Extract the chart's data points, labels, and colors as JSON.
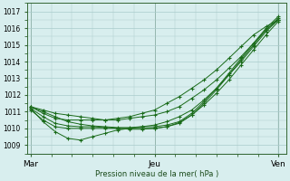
{
  "title": "",
  "xlabel": "Pression niveau de la mer( hPa )",
  "bg_color": "#d8eeee",
  "grid_color": "#aacccc",
  "line_color": "#1a6b1a",
  "ylim": [
    1008.5,
    1017.5
  ],
  "yticks": [
    1009,
    1010,
    1011,
    1012,
    1013,
    1014,
    1015,
    1016,
    1017
  ],
  "xtick_labels": [
    "Mar",
    "Jeu",
    "Ven"
  ],
  "xtick_positions": [
    0.0,
    0.417,
    0.833
  ],
  "series": [
    {
      "x": [
        0.0,
        0.042,
        0.083,
        0.125,
        0.167,
        0.208,
        0.25,
        0.292,
        0.333,
        0.375,
        0.417,
        0.458,
        0.5,
        0.542,
        0.583,
        0.625,
        0.667,
        0.708,
        0.75,
        0.792,
        0.833
      ],
      "y": [
        1011.3,
        1011.1,
        1010.9,
        1010.8,
        1010.7,
        1010.6,
        1010.5,
        1010.5,
        1010.6,
        1010.7,
        1010.8,
        1011.0,
        1011.3,
        1011.8,
        1012.3,
        1012.9,
        1013.6,
        1014.3,
        1015.1,
        1015.9,
        1016.6
      ]
    },
    {
      "x": [
        0.0,
        0.042,
        0.083,
        0.125,
        0.167,
        0.208,
        0.25,
        0.292,
        0.333,
        0.375,
        0.417,
        0.458,
        0.5,
        0.542,
        0.583,
        0.625,
        0.667,
        0.708,
        0.75,
        0.792,
        0.833
      ],
      "y": [
        1011.1,
        1010.5,
        1010.1,
        1010.0,
        1010.0,
        1010.0,
        1010.0,
        1010.0,
        1010.0,
        1010.0,
        1010.0,
        1010.1,
        1010.3,
        1010.8,
        1011.5,
        1012.3,
        1013.2,
        1014.1,
        1015.0,
        1015.9,
        1016.5
      ]
    },
    {
      "x": [
        0.0,
        0.042,
        0.083,
        0.125,
        0.167,
        0.208,
        0.25,
        0.292,
        0.333,
        0.375,
        0.417,
        0.458,
        0.5,
        0.542,
        0.583,
        0.625,
        0.667,
        0.708,
        0.75,
        0.792,
        0.833
      ],
      "y": [
        1011.2,
        1010.4,
        1009.8,
        1009.4,
        1009.3,
        1009.5,
        1009.7,
        1009.9,
        1010.0,
        1010.1,
        1010.1,
        1010.2,
        1010.4,
        1010.9,
        1011.6,
        1012.4,
        1013.3,
        1014.2,
        1015.1,
        1016.0,
        1016.7
      ]
    },
    {
      "x": [
        0.0,
        0.042,
        0.083,
        0.125,
        0.167,
        0.208,
        0.25,
        0.292,
        0.333,
        0.375,
        0.417,
        0.458,
        0.5,
        0.542,
        0.583,
        0.625,
        0.667,
        0.708,
        0.75,
        0.792,
        0.833
      ],
      "y": [
        1011.3,
        1010.9,
        1010.6,
        1010.5,
        1010.5,
        1010.5,
        1010.5,
        1010.6,
        1010.7,
        1010.9,
        1011.1,
        1011.5,
        1011.9,
        1012.4,
        1012.9,
        1013.5,
        1014.2,
        1014.9,
        1015.6,
        1016.1,
        1016.5
      ]
    },
    {
      "x": [
        0.0,
        0.042,
        0.083,
        0.125,
        0.167,
        0.208,
        0.25,
        0.292,
        0.333,
        0.375,
        0.417,
        0.458,
        0.5,
        0.542,
        0.583,
        0.625,
        0.667,
        0.708,
        0.75,
        0.792,
        0.833
      ],
      "y": [
        1011.2,
        1010.7,
        1010.3,
        1010.15,
        1010.1,
        1010.1,
        1010.05,
        1010.0,
        1009.95,
        1009.95,
        1010.0,
        1010.1,
        1010.35,
        1010.8,
        1011.4,
        1012.1,
        1012.9,
        1013.8,
        1014.7,
        1015.6,
        1016.4
      ]
    },
    {
      "x": [
        0.0,
        0.042,
        0.083,
        0.125,
        0.167,
        0.208,
        0.25,
        0.292,
        0.333,
        0.375,
        0.417,
        0.458,
        0.5,
        0.542,
        0.583,
        0.625,
        0.667,
        0.708,
        0.75,
        0.792,
        0.833
      ],
      "y": [
        1011.3,
        1011.0,
        1010.7,
        1010.4,
        1010.25,
        1010.15,
        1010.1,
        1010.05,
        1010.05,
        1010.1,
        1010.2,
        1010.4,
        1010.7,
        1011.1,
        1011.7,
        1012.4,
        1013.2,
        1014.0,
        1014.9,
        1015.8,
        1016.5
      ]
    }
  ]
}
